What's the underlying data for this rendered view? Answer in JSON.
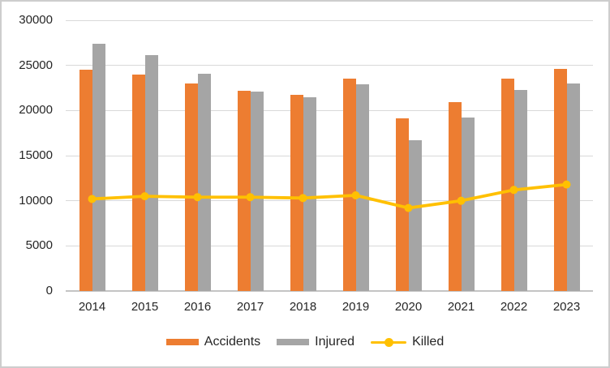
{
  "chart_data": {
    "type": "bar",
    "title": "",
    "categories": [
      "2014",
      "2015",
      "2016",
      "2017",
      "2018",
      "2019",
      "2020",
      "2021",
      "2022",
      "2023"
    ],
    "series": [
      {
        "name": "Accidents",
        "chart_type": "bar",
        "color": "#ED7D31",
        "values": [
          24500,
          24000,
          23000,
          22200,
          21700,
          23500,
          19100,
          20900,
          23500,
          24600
        ]
      },
      {
        "name": "Injured",
        "chart_type": "bar",
        "color": "#A5A5A5",
        "values": [
          27400,
          26100,
          24100,
          22100,
          21500,
          22900,
          16700,
          19200,
          22300,
          23000
        ]
      },
      {
        "name": "Killed",
        "chart_type": "line",
        "color": "#FFC000",
        "values": [
          10200,
          10500,
          10400,
          10400,
          10300,
          10600,
          9200,
          10000,
          11200,
          11800
        ]
      }
    ],
    "xlabel": "",
    "ylabel": "",
    "ylim": [
      0,
      30000
    ],
    "ytick_interval": 5000,
    "yticks": [
      "30000",
      "25000",
      "20000",
      "15000",
      "10000",
      "5000",
      "0"
    ],
    "grid": true,
    "legend_position": "bottom"
  },
  "colors": {
    "accidents": "#ED7D31",
    "injured": "#A5A5A5",
    "killed": "#FFC000",
    "gridline": "#D9D9D9",
    "axis_line": "#C4C4C4",
    "label_text": "#262626",
    "frame_border": "#CDCDCD",
    "background": "#FFFFFF"
  }
}
